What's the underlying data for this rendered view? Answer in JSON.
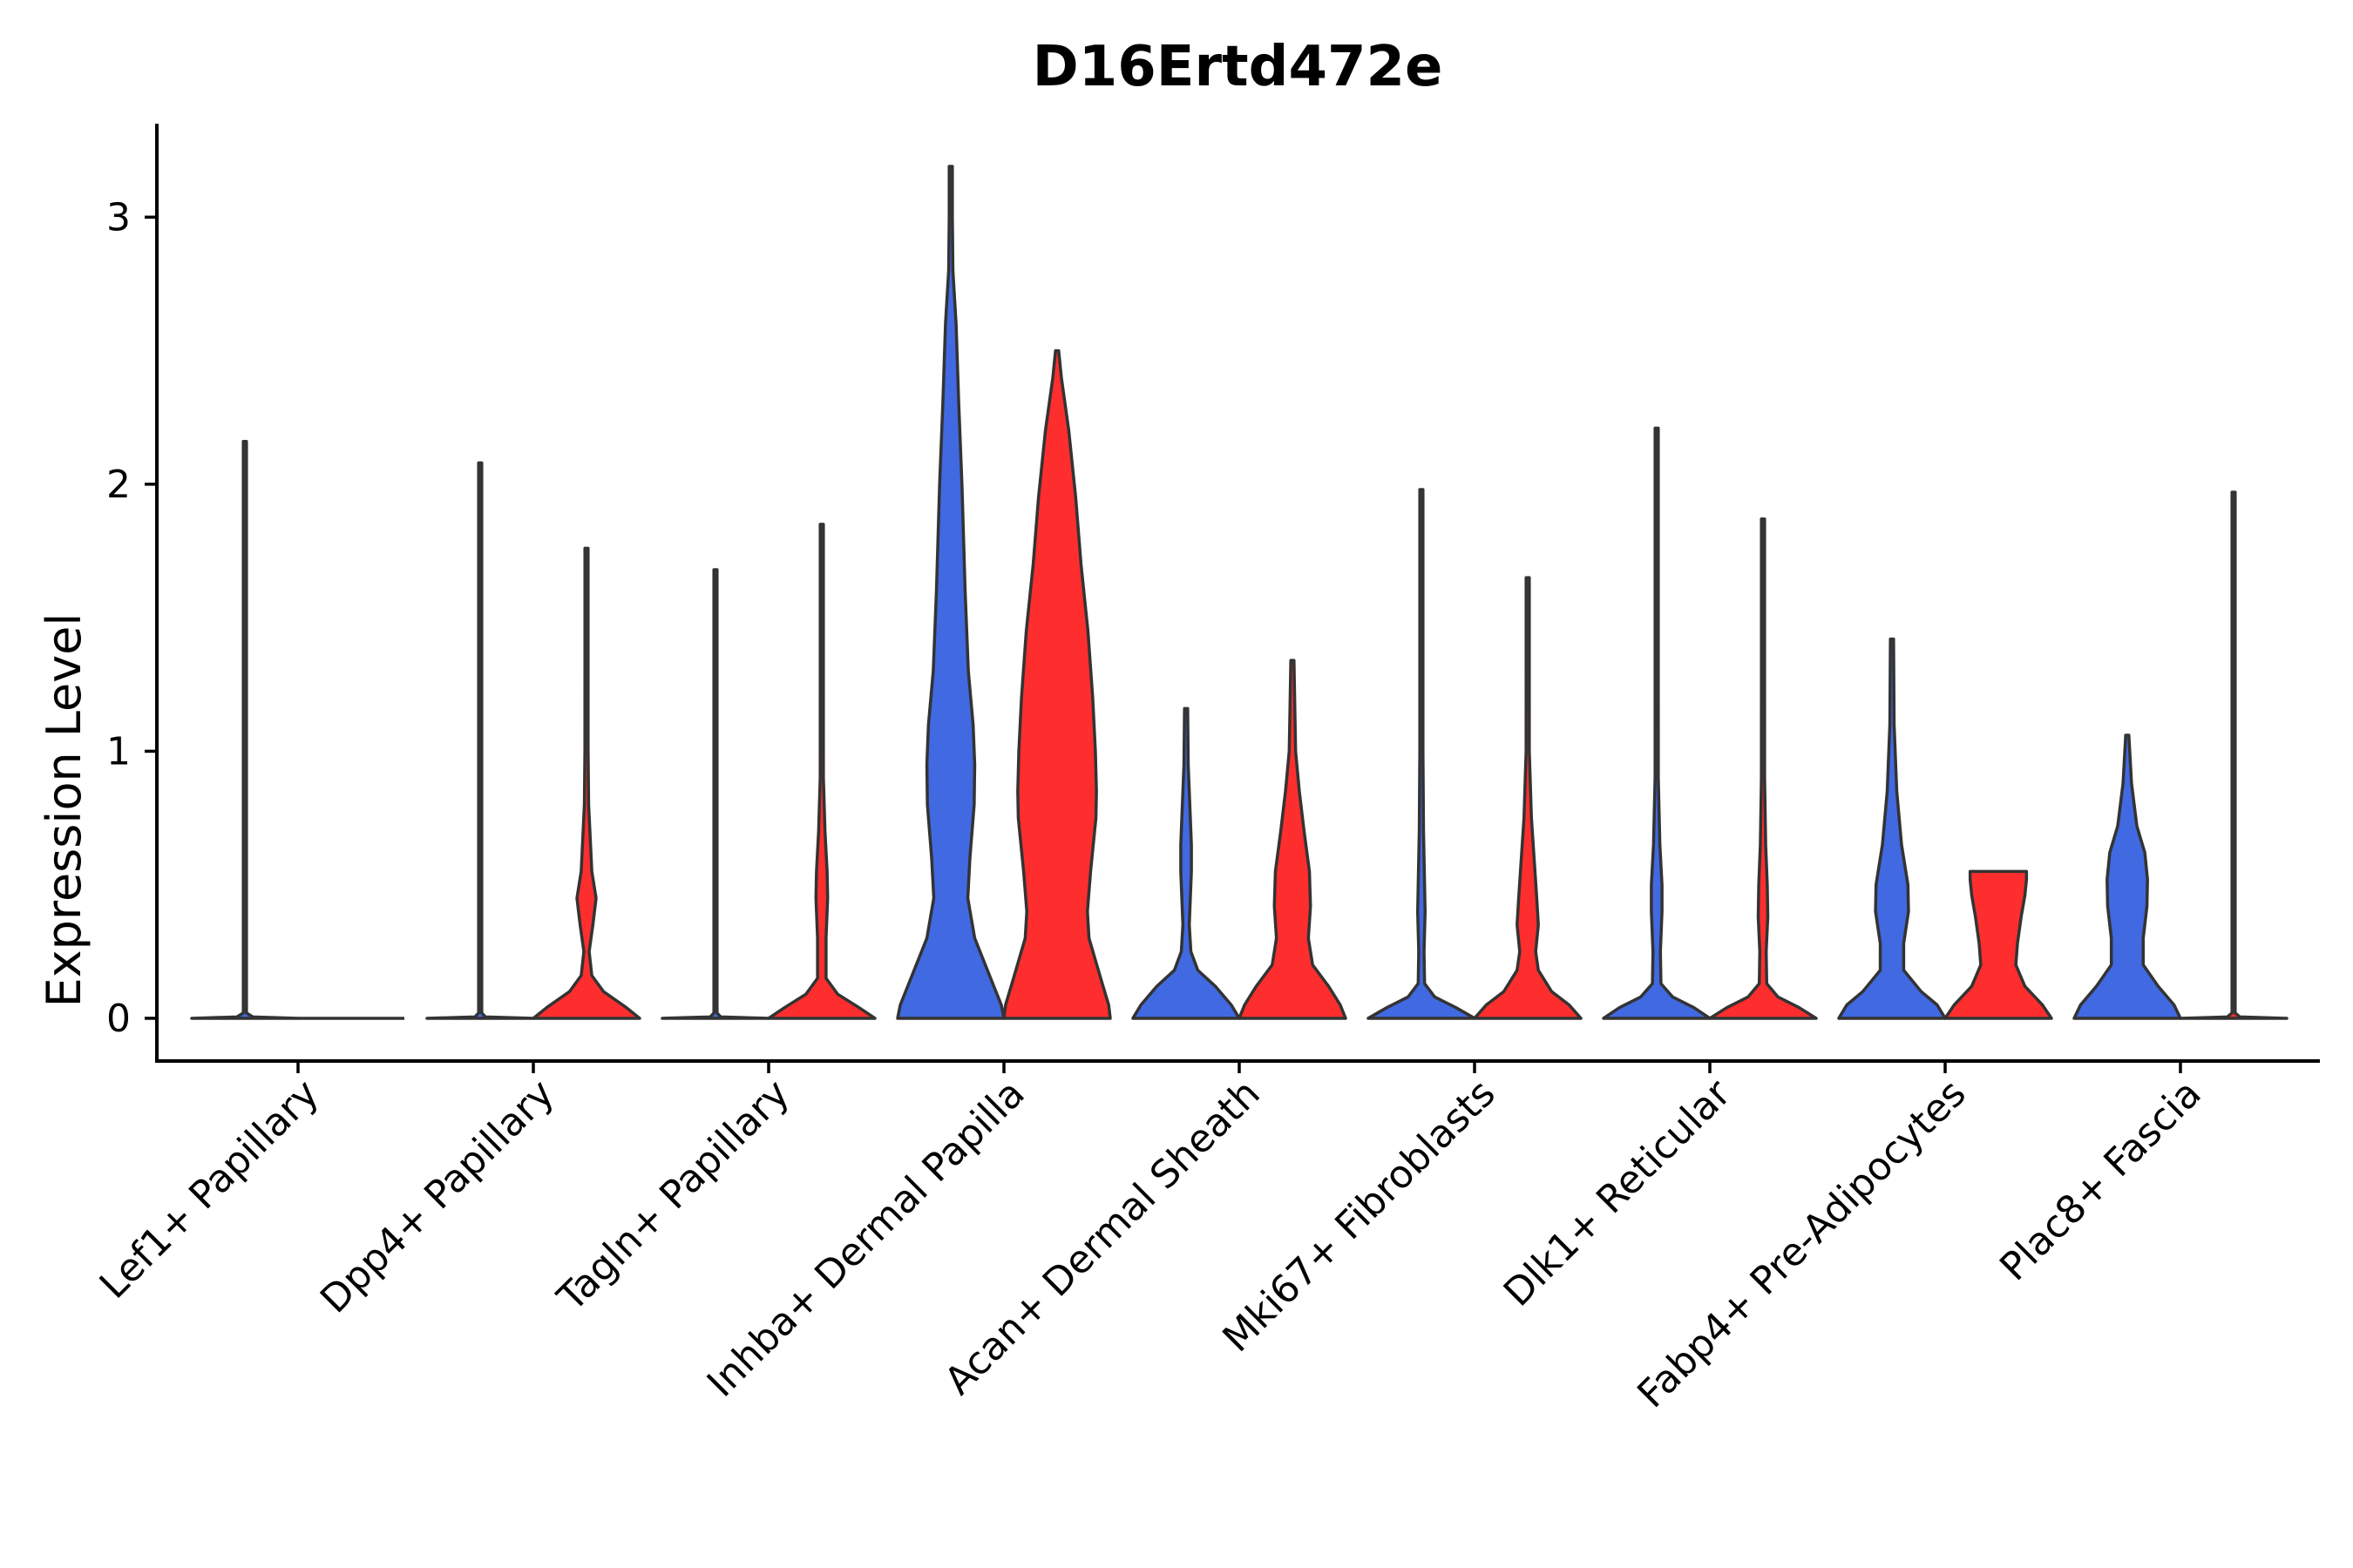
{
  "chart_data": {
    "type": "violin",
    "title": "D16Ertd472e",
    "xlabel": "",
    "ylabel": "Expression Level",
    "ylim": [
      -0.16,
      3.35
    ],
    "yticks": [
      0,
      1,
      2,
      3
    ],
    "grid": false,
    "legend": "none",
    "series": [
      {
        "name": "group 1",
        "color": "#4169E1"
      },
      {
        "name": "group 2",
        "color": "#FF2E2E"
      }
    ],
    "categories": [
      "Lef1+ Papillary",
      "Dpp4+ Papillary",
      "Tagln+ Papillary",
      "Inhba+ Dermal Papilla",
      "Acan+ Dermal Sheath",
      "Mki67+ Fibroblasts",
      "Dlk1+ Reticular",
      "Fabp4+ Pre-Adipocytes",
      "Plac8+ Fascia"
    ],
    "violins": [
      {
        "category": "Lef1+ Papillary",
        "series": "group 1",
        "max": 2.16,
        "profile": [
          [
            0,
            1.0
          ],
          [
            0.005,
            0.15
          ],
          [
            0.02,
            0.003
          ],
          [
            2.16,
            0.003
          ]
        ]
      },
      {
        "category": "Lef1+ Papillary",
        "series": "group 2",
        "max": 0.0,
        "profile": []
      },
      {
        "category": "Dpp4+ Papillary",
        "series": "group 1",
        "max": 2.08,
        "profile": [
          [
            0,
            1.0
          ],
          [
            0.005,
            0.1
          ],
          [
            0.02,
            0.003
          ],
          [
            2.08,
            0.003
          ]
        ]
      },
      {
        "category": "Dpp4+ Papillary",
        "series": "group 2",
        "max": 1.76,
        "profile": [
          [
            0,
            1.0
          ],
          [
            0.04,
            0.75
          ],
          [
            0.1,
            0.32
          ],
          [
            0.16,
            0.1
          ],
          [
            0.25,
            0.05
          ],
          [
            0.35,
            0.12
          ],
          [
            0.45,
            0.18
          ],
          [
            0.55,
            0.1
          ],
          [
            0.8,
            0.04
          ],
          [
            1.0,
            0.03
          ],
          [
            1.3,
            0.012
          ],
          [
            1.76,
            0.003
          ]
        ]
      },
      {
        "category": "Tagln+ Papillary",
        "series": "group 1",
        "max": 1.68,
        "profile": [
          [
            0,
            1.0
          ],
          [
            0.005,
            0.1
          ],
          [
            0.02,
            0.003
          ],
          [
            1.68,
            0.003
          ]
        ]
      },
      {
        "category": "Tagln+ Papillary",
        "series": "group 2",
        "max": 1.85,
        "profile": [
          [
            0,
            1.0
          ],
          [
            0.04,
            0.7
          ],
          [
            0.09,
            0.3
          ],
          [
            0.15,
            0.08
          ],
          [
            0.3,
            0.08
          ],
          [
            0.45,
            0.11
          ],
          [
            0.55,
            0.1
          ],
          [
            0.7,
            0.06
          ],
          [
            0.9,
            0.03
          ],
          [
            1.2,
            0.012
          ],
          [
            1.85,
            0.003
          ]
        ]
      },
      {
        "category": "Inhba+ Dermal Papilla",
        "series": "group 1",
        "max": 3.19,
        "profile": [
          [
            0,
            1.0
          ],
          [
            0.05,
            0.95
          ],
          [
            0.15,
            0.75
          ],
          [
            0.3,
            0.45
          ],
          [
            0.45,
            0.32
          ],
          [
            0.6,
            0.36
          ],
          [
            0.8,
            0.44
          ],
          [
            0.95,
            0.45
          ],
          [
            1.1,
            0.42
          ],
          [
            1.3,
            0.33
          ],
          [
            1.6,
            0.27
          ],
          [
            2.0,
            0.21
          ],
          [
            2.3,
            0.15
          ],
          [
            2.6,
            0.1
          ],
          [
            2.8,
            0.04
          ],
          [
            3.0,
            0.01
          ],
          [
            3.19,
            0.003
          ]
        ]
      },
      {
        "category": "Inhba+ Dermal Papilla",
        "series": "group 2",
        "max": 2.5,
        "profile": [
          [
            0,
            1.0
          ],
          [
            0.05,
            0.97
          ],
          [
            0.15,
            0.82
          ],
          [
            0.3,
            0.6
          ],
          [
            0.4,
            0.57
          ],
          [
            0.55,
            0.63
          ],
          [
            0.75,
            0.73
          ],
          [
            0.85,
            0.74
          ],
          [
            1.0,
            0.72
          ],
          [
            1.2,
            0.67
          ],
          [
            1.45,
            0.58
          ],
          [
            1.7,
            0.45
          ],
          [
            1.95,
            0.35
          ],
          [
            2.2,
            0.22
          ],
          [
            2.4,
            0.08
          ],
          [
            2.5,
            0.003
          ]
        ]
      },
      {
        "category": "Acan+ Dermal Sheath",
        "series": "group 1",
        "max": 1.16,
        "profile": [
          [
            0,
            1.0
          ],
          [
            0.05,
            0.85
          ],
          [
            0.12,
            0.55
          ],
          [
            0.18,
            0.22
          ],
          [
            0.25,
            0.09
          ],
          [
            0.35,
            0.06
          ],
          [
            0.45,
            0.08
          ],
          [
            0.55,
            0.1
          ],
          [
            0.65,
            0.1
          ],
          [
            0.8,
            0.07
          ],
          [
            0.95,
            0.04
          ],
          [
            1.16,
            0.003
          ]
        ]
      },
      {
        "category": "Acan+ Dermal Sheath",
        "series": "group 2",
        "max": 1.34,
        "profile": [
          [
            0,
            1.0
          ],
          [
            0.05,
            0.9
          ],
          [
            0.12,
            0.68
          ],
          [
            0.2,
            0.38
          ],
          [
            0.3,
            0.3
          ],
          [
            0.42,
            0.34
          ],
          [
            0.55,
            0.32
          ],
          [
            0.7,
            0.22
          ],
          [
            0.85,
            0.13
          ],
          [
            1.0,
            0.06
          ],
          [
            1.34,
            0.003
          ]
        ]
      },
      {
        "category": "Mki67+ Fibroblasts",
        "series": "group 1",
        "max": 1.98,
        "profile": [
          [
            0,
            1.0
          ],
          [
            0.04,
            0.65
          ],
          [
            0.08,
            0.25
          ],
          [
            0.13,
            0.06
          ],
          [
            0.25,
            0.05
          ],
          [
            0.4,
            0.07
          ],
          [
            0.5,
            0.06
          ],
          [
            0.7,
            0.04
          ],
          [
            1.0,
            0.02
          ],
          [
            1.5,
            0.01
          ],
          [
            1.98,
            0.003
          ]
        ]
      },
      {
        "category": "Mki67+ Fibroblasts",
        "series": "group 2",
        "max": 1.65,
        "profile": [
          [
            0,
            1.0
          ],
          [
            0.05,
            0.78
          ],
          [
            0.1,
            0.45
          ],
          [
            0.18,
            0.2
          ],
          [
            0.25,
            0.15
          ],
          [
            0.35,
            0.2
          ],
          [
            0.45,
            0.17
          ],
          [
            0.6,
            0.12
          ],
          [
            0.75,
            0.07
          ],
          [
            1.0,
            0.03
          ],
          [
            1.3,
            0.015
          ],
          [
            1.65,
            0.003
          ]
        ]
      },
      {
        "category": "Dlk1+ Reticular",
        "series": "group 1",
        "max": 2.21,
        "profile": [
          [
            0,
            1.0
          ],
          [
            0.04,
            0.7
          ],
          [
            0.08,
            0.3
          ],
          [
            0.13,
            0.08
          ],
          [
            0.25,
            0.07
          ],
          [
            0.4,
            0.1
          ],
          [
            0.5,
            0.1
          ],
          [
            0.65,
            0.06
          ],
          [
            0.9,
            0.03
          ],
          [
            1.3,
            0.012
          ],
          [
            2.21,
            0.003
          ]
        ]
      },
      {
        "category": "Dlk1+ Reticular",
        "series": "group 2",
        "max": 1.87,
        "profile": [
          [
            0,
            1.0
          ],
          [
            0.04,
            0.68
          ],
          [
            0.08,
            0.28
          ],
          [
            0.13,
            0.07
          ],
          [
            0.25,
            0.06
          ],
          [
            0.38,
            0.09
          ],
          [
            0.5,
            0.08
          ],
          [
            0.65,
            0.05
          ],
          [
            0.9,
            0.03
          ],
          [
            1.3,
            0.01
          ],
          [
            1.87,
            0.003
          ]
        ]
      },
      {
        "category": "Fabp4+ Pre-Adipocytes",
        "series": "group 1",
        "max": 1.42,
        "profile": [
          [
            0,
            1.0
          ],
          [
            0.05,
            0.85
          ],
          [
            0.1,
            0.55
          ],
          [
            0.18,
            0.22
          ],
          [
            0.28,
            0.22
          ],
          [
            0.4,
            0.31
          ],
          [
            0.5,
            0.3
          ],
          [
            0.65,
            0.18
          ],
          [
            0.85,
            0.09
          ],
          [
            1.1,
            0.04
          ],
          [
            1.42,
            0.003
          ]
        ]
      },
      {
        "category": "Fabp4+ Pre-Adipocytes",
        "series": "group 2",
        "max": 0.55,
        "profile": [
          [
            0,
            1.0
          ],
          [
            0.05,
            0.83
          ],
          [
            0.12,
            0.5
          ],
          [
            0.2,
            0.33
          ],
          [
            0.28,
            0.36
          ],
          [
            0.38,
            0.43
          ],
          [
            0.46,
            0.5
          ],
          [
            0.52,
            0.53
          ],
          [
            0.55,
            0.53
          ]
        ]
      },
      {
        "category": "Plac8+ Fascia",
        "series": "group 1",
        "max": 1.06,
        "profile": [
          [
            0,
            1.0
          ],
          [
            0.05,
            0.88
          ],
          [
            0.12,
            0.58
          ],
          [
            0.2,
            0.3
          ],
          [
            0.3,
            0.3
          ],
          [
            0.42,
            0.37
          ],
          [
            0.52,
            0.38
          ],
          [
            0.62,
            0.33
          ],
          [
            0.72,
            0.18
          ],
          [
            0.88,
            0.08
          ],
          [
            1.06,
            0.003
          ]
        ]
      },
      {
        "category": "Plac8+ Fascia",
        "series": "group 2",
        "max": 1.97,
        "profile": [
          [
            0,
            1.0
          ],
          [
            0.005,
            0.12
          ],
          [
            0.02,
            0.003
          ],
          [
            1.97,
            0.003
          ]
        ]
      }
    ]
  }
}
